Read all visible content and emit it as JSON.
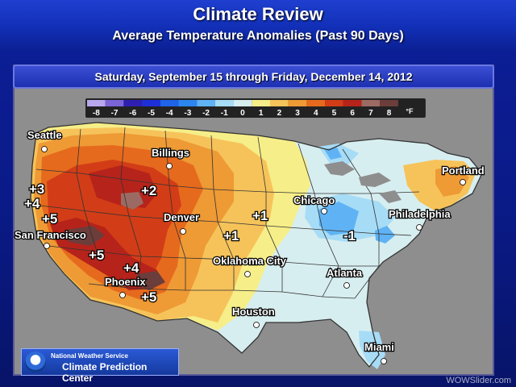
{
  "header": {
    "title": "Climate Review",
    "subtitle": "Average Temperature Anomalies (Past 90 Days)"
  },
  "map": {
    "date_range": "Saturday, September 15 through Friday, December 14, 2012",
    "unit": "°F",
    "legend": [
      {
        "label": "-8",
        "color": "#b9a7ee"
      },
      {
        "label": "-7",
        "color": "#7b64d6"
      },
      {
        "label": "-6",
        "color": "#2f1fb1"
      },
      {
        "label": "-5",
        "color": "#1f2fd8"
      },
      {
        "label": "-4",
        "color": "#1f63e8"
      },
      {
        "label": "-3",
        "color": "#2c86f0"
      },
      {
        "label": "-2",
        "color": "#5fb3f5"
      },
      {
        "label": "-1",
        "color": "#a7dcf6"
      },
      {
        "label": "0",
        "color": "#d7eef0"
      },
      {
        "label": "1",
        "color": "#f6ee88"
      },
      {
        "label": "2",
        "color": "#f6c35a"
      },
      {
        "label": "3",
        "color": "#ee9a35"
      },
      {
        "label": "4",
        "color": "#e66a1d"
      },
      {
        "label": "5",
        "color": "#d23d17"
      },
      {
        "label": "6",
        "color": "#b6231a"
      },
      {
        "label": "7",
        "color": "#9b6b63"
      },
      {
        "label": "8",
        "color": "#6b3d3b"
      }
    ],
    "cities": [
      "Seattle",
      "Billings",
      "Portland",
      "Chicago",
      "Philadelphia",
      "Denver",
      "San Francisco",
      "Oklahoma City",
      "Atlanta",
      "Phoenix",
      "Houston",
      "Miami"
    ],
    "anomaly_labels": [
      "+3",
      "+4",
      "+5",
      "+2",
      "+1",
      "+1",
      "+5",
      "+4",
      "+5",
      "-1"
    ]
  },
  "footer": {
    "agency_line1": "National Weather Service",
    "agency_line2": "Climate Prediction Center",
    "watermark": "WOWSlider.com"
  }
}
